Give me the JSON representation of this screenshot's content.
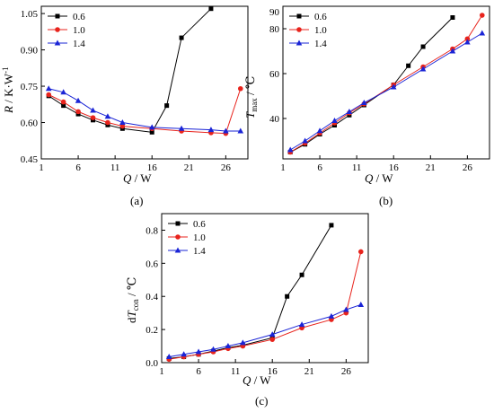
{
  "colors": {
    "s06": "#000000",
    "s10": "#e8231c",
    "s14": "#1a24d6",
    "axis": "#000000"
  },
  "chart_data": [
    {
      "type": "line",
      "panel_label": "(a)",
      "ylabel": "R / K·W⁻¹",
      "xlabel": "Q / W",
      "xlim": [
        1,
        29
      ],
      "ylim": [
        0.45,
        1.08
      ],
      "xticks": [
        1,
        6,
        11,
        16,
        21,
        26
      ],
      "yticks": [
        0.45,
        0.6,
        0.75,
        0.9,
        1.05
      ],
      "ytick_labels": [
        "0.45",
        "0.60",
        "0.75",
        "0.90",
        "1.05"
      ],
      "legend_position": "top-left",
      "series": [
        {
          "name": "0.6",
          "marker": "square",
          "x": [
            2,
            4,
            6,
            8,
            10,
            12,
            16,
            18,
            20,
            24
          ],
          "y": [
            0.71,
            0.67,
            0.635,
            0.61,
            0.59,
            0.575,
            0.56,
            0.67,
            0.95,
            1.07
          ]
        },
        {
          "name": "1.0",
          "marker": "circle",
          "x": [
            2,
            4,
            6,
            8,
            10,
            12,
            16,
            20,
            24,
            26,
            28
          ],
          "y": [
            0.715,
            0.685,
            0.645,
            0.62,
            0.6,
            0.585,
            0.575,
            0.565,
            0.558,
            0.555,
            0.74
          ]
        },
        {
          "name": "1.4",
          "marker": "triangle",
          "x": [
            2,
            4,
            6,
            8,
            10,
            12,
            16,
            20,
            24,
            26,
            28
          ],
          "y": [
            0.74,
            0.725,
            0.69,
            0.65,
            0.625,
            0.6,
            0.58,
            0.575,
            0.57,
            0.565,
            0.565
          ]
        }
      ]
    },
    {
      "type": "line",
      "panel_label": "(b)",
      "ylabel": "Tmax / ℃",
      "xlabel": "Q / W",
      "xlim": [
        1,
        29
      ],
      "ylim": [
        22,
        90
      ],
      "xticks": [
        1,
        6,
        11,
        16,
        21,
        26
      ],
      "yticks": [
        22,
        40,
        60,
        80
      ],
      "ytick_labels": [
        "",
        "40",
        "60",
        "80"
      ],
      "extra_tick_labels": [
        {
          "value": 90,
          "text": "90"
        }
      ],
      "legend_position": "top-left",
      "series": [
        {
          "name": "0.6",
          "marker": "square",
          "x": [
            2,
            4,
            6,
            8,
            10,
            12,
            16,
            18,
            20,
            24
          ],
          "y": [
            25,
            28.5,
            33,
            37,
            41.5,
            46,
            55,
            63.5,
            72,
            85
          ]
        },
        {
          "name": "1.0",
          "marker": "circle",
          "x": [
            2,
            4,
            6,
            8,
            10,
            12,
            16,
            20,
            24,
            26,
            28
          ],
          "y": [
            25,
            29,
            33.5,
            38,
            42.5,
            46.5,
            55,
            63,
            71,
            75.5,
            86
          ]
        },
        {
          "name": "1.4",
          "marker": "triangle",
          "x": [
            2,
            4,
            6,
            8,
            10,
            12,
            16,
            20,
            24,
            26,
            28
          ],
          "y": [
            26,
            30,
            34.5,
            39,
            43,
            47,
            54,
            62,
            70,
            74,
            78
          ]
        }
      ]
    },
    {
      "type": "line",
      "panel_label": "(c)",
      "ylabel": "dTcon / ℃",
      "xlabel": "Q / W",
      "xlim": [
        1,
        29
      ],
      "ylim": [
        0,
        0.9
      ],
      "xticks": [
        1,
        6,
        11,
        16,
        21,
        26
      ],
      "yticks": [
        0,
        0.2,
        0.4,
        0.6,
        0.8
      ],
      "ytick_labels": [
        "0.0",
        "0.2",
        "0.4",
        "0.6",
        "0.8"
      ],
      "legend_position": "top-left",
      "series": [
        {
          "name": "0.6",
          "marker": "square",
          "x": [
            2,
            4,
            6,
            8,
            10,
            12,
            16,
            18,
            20,
            24
          ],
          "y": [
            0.025,
            0.035,
            0.05,
            0.07,
            0.09,
            0.105,
            0.15,
            0.4,
            0.53,
            0.83
          ]
        },
        {
          "name": "1.0",
          "marker": "circle",
          "x": [
            2,
            4,
            6,
            8,
            10,
            12,
            16,
            20,
            24,
            26,
            28
          ],
          "y": [
            0.02,
            0.035,
            0.05,
            0.065,
            0.085,
            0.1,
            0.14,
            0.21,
            0.26,
            0.3,
            0.67
          ]
        },
        {
          "name": "1.4",
          "marker": "triangle",
          "x": [
            2,
            4,
            6,
            8,
            10,
            12,
            16,
            20,
            24,
            26,
            28
          ],
          "y": [
            0.035,
            0.05,
            0.065,
            0.08,
            0.1,
            0.12,
            0.17,
            0.23,
            0.28,
            0.32,
            0.35
          ]
        }
      ]
    }
  ]
}
